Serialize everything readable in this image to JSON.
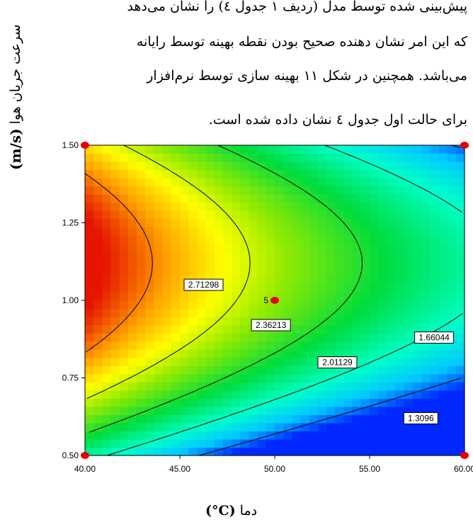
{
  "paragraph": {
    "line1": "پیش‌بینی شده توسط مدل (ردیف ۱ جدول ٤) را نشان می‌دهد",
    "line2": "که این امر نشان دهنده صحیح بودن نقطه بهینه توسط رایانه",
    "line3": "می‌باشد. همچنین در شکل ۱۱ بهینه سازی توسط نرم‌افزار",
    "line4": "برای حالت اول جدول ٤ نشان داده شده است."
  },
  "chart_data": {
    "type": "contour",
    "x_ticks": [
      "40.00",
      "45.00",
      "50.00",
      "55.00",
      "60.00"
    ],
    "y_ticks": [
      "0.50",
      "0.75",
      "1.00",
      "1.25",
      "1.50"
    ],
    "xlim": [
      40,
      60
    ],
    "ylim": [
      0.5,
      1.5
    ],
    "xlabel": {
      "text": "دما",
      "unit": "(°C)"
    },
    "ylabel": {
      "text": "سرعت جریان هوا",
      "unit": "(m/s)"
    },
    "contour_labels": [
      {
        "text": "2.71298",
        "value": 2.71298,
        "x": 46.25,
        "y": 1.05
      },
      {
        "text": "2.36213",
        "value": 2.36213,
        "x": 49.8,
        "y": 0.92
      },
      {
        "text": "2.01129",
        "value": 2.01129,
        "x": 53.3,
        "y": 0.8
      },
      {
        "text": "1.66044",
        "value": 1.66044,
        "x": 58.4,
        "y": 0.88
      },
      {
        "text": "1.3096",
        "value": 1.3096,
        "x": 57.7,
        "y": 0.62
      }
    ],
    "center_point": {
      "x": 50,
      "y": 1.0,
      "label": "5"
    },
    "corner_points": [
      {
        "x": 40,
        "y": 0.5
      },
      {
        "x": 40,
        "y": 1.5
      },
      {
        "x": 60,
        "y": 0.5
      },
      {
        "x": 60,
        "y": 1.5
      }
    ],
    "colormap": [
      "#e60000",
      "#ff8c00",
      "#ffff00",
      "#00cc00",
      "#00ffff",
      "#0033ff"
    ]
  }
}
